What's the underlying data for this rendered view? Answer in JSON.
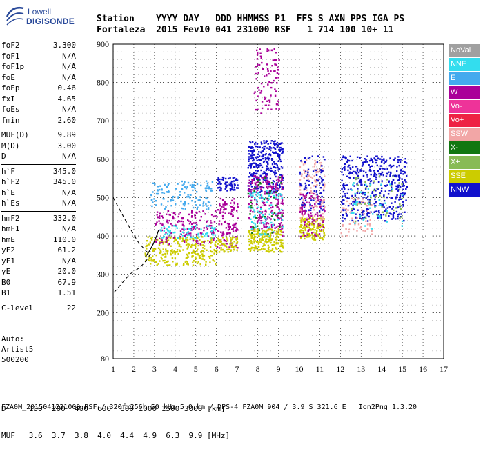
{
  "logo": {
    "line1": "Lowell",
    "line2": "DIGISONDE"
  },
  "header": {
    "labels": "Station    YYYY DAY   DDD HHMMSS P1  FFS S AXN PPS IGA PS",
    "values": "Fortaleza  2015 Fev10 041 231000 RSF   1 714 100 10+ 11"
  },
  "params_group1": [
    {
      "name": "foF2",
      "value": "3.300"
    },
    {
      "name": "foF1",
      "value": "N/A"
    },
    {
      "name": "foF1p",
      "value": "N/A"
    },
    {
      "name": "foE",
      "value": "N/A"
    },
    {
      "name": "foEp",
      "value": "0.46"
    },
    {
      "name": "fxI",
      "value": "4.65"
    },
    {
      "name": "foEs",
      "value": "N/A"
    },
    {
      "name": "fmin",
      "value": "2.60"
    }
  ],
  "params_group2": [
    {
      "name": "MUF(D)",
      "value": "9.89"
    },
    {
      "name": "M(D)",
      "value": "3.00"
    },
    {
      "name": "D",
      "value": "N/A"
    }
  ],
  "params_group3": [
    {
      "name": "h`F",
      "value": "345.0"
    },
    {
      "name": "h`F2",
      "value": "345.0"
    },
    {
      "name": "h`E",
      "value": "N/A"
    },
    {
      "name": "h`Es",
      "value": "N/A"
    }
  ],
  "params_group4": [
    {
      "name": "hmF2",
      "value": "332.0"
    },
    {
      "name": "hmF1",
      "value": "N/A"
    },
    {
      "name": "hmE",
      "value": "110.0"
    },
    {
      "name": "yF2",
      "value": "61.2"
    },
    {
      "name": "yF1",
      "value": "N/A"
    },
    {
      "name": "yE",
      "value": "20.0"
    },
    {
      "name": "B0",
      "value": "67.9"
    },
    {
      "name": "B1",
      "value": "1.51"
    }
  ],
  "params_group5": [
    {
      "name": "C-level",
      "value": "22"
    }
  ],
  "auto": {
    "line1": "Auto:",
    "line2": "Artist5",
    "line3": "500200"
  },
  "legend": [
    {
      "label": "NoVal",
      "color": "#a0a0a0",
      "text": "#ffffff"
    },
    {
      "label": "NNE",
      "color": "#33ddee",
      "text": "#ffffff"
    },
    {
      "label": "E",
      "color": "#44aaee",
      "text": "#ffffff"
    },
    {
      "label": "W",
      "color": "#aa0099",
      "text": "#ffffff"
    },
    {
      "label": "Vo-",
      "color": "#ee3399",
      "text": "#ffffff"
    },
    {
      "label": "Vo+",
      "color": "#ee2244",
      "text": "#ffffff"
    },
    {
      "label": "SSW",
      "color": "#f2a6a6",
      "text": "#ffffff"
    },
    {
      "label": "X-",
      "color": "#117711",
      "text": "#ffffff"
    },
    {
      "label": "X+",
      "color": "#88bb55",
      "text": "#ffffff"
    },
    {
      "label": "SSE",
      "color": "#cccc00",
      "text": "#ffffff"
    },
    {
      "label": "NNW",
      "color": "#1111cc",
      "text": "#ffffff"
    }
  ],
  "bottom": {
    "d_row": "D     100  200  400  600  800 1000 1500 3000 [km]",
    "muf_row": "MUF   3.6  3.7  3.8  4.0  4.4  4.9  6.3  9.9 [MHz]"
  },
  "footer": "FZA0M_2015041231000.RSF / 320fx256h 50 kHz 5.0 km / DPS-4 FZA0M 904 / 3.9 S 321.6 E   Ion2Png 1.3.20",
  "chart_data": {
    "type": "scatter",
    "xlabel": "",
    "ylabel": "",
    "xlim": [
      1,
      17
    ],
    "ylim": [
      80,
      900
    ],
    "xticks": [
      1,
      2,
      3,
      4,
      5,
      6,
      7,
      8,
      9,
      10,
      11,
      12,
      13,
      14,
      15,
      16,
      17
    ],
    "yticks": [
      80,
      200,
      300,
      400,
      500,
      600,
      700,
      800,
      900
    ],
    "grid": true,
    "clusters": [
      {
        "series": "SSE",
        "x": [
          2.5,
          6.0
        ],
        "y": [
          325,
          400
        ],
        "n": 260
      },
      {
        "series": "E",
        "x": [
          2.8,
          5.8
        ],
        "y": [
          470,
          545
        ],
        "n": 130
      },
      {
        "series": "W",
        "x": [
          3.0,
          6.0
        ],
        "y": [
          380,
          470
        ],
        "n": 160
      },
      {
        "series": "NNE",
        "x": [
          3.2,
          6.0
        ],
        "y": [
          395,
          430
        ],
        "n": 70
      },
      {
        "series": "NNW",
        "x": [
          6.0,
          7.0
        ],
        "y": [
          520,
          555
        ],
        "n": 70
      },
      {
        "series": "W",
        "x": [
          6.0,
          7.0
        ],
        "y": [
          370,
          500
        ],
        "n": 110
      },
      {
        "series": "SSE",
        "x": [
          6.0,
          7.0
        ],
        "y": [
          360,
          400
        ],
        "n": 60
      },
      {
        "series": "NNW",
        "x": [
          7.5,
          9.2
        ],
        "y": [
          510,
          650
        ],
        "n": 300
      },
      {
        "series": "W",
        "x": [
          7.5,
          9.2
        ],
        "y": [
          400,
          560
        ],
        "n": 220
      },
      {
        "series": "SSE",
        "x": [
          7.5,
          9.2
        ],
        "y": [
          360,
          420
        ],
        "n": 180
      },
      {
        "series": "NNE",
        "x": [
          7.5,
          9.2
        ],
        "y": [
          400,
          520
        ],
        "n": 90
      },
      {
        "series": "X-",
        "x": [
          7.5,
          9.2
        ],
        "y": [
          400,
          560
        ],
        "n": 40
      },
      {
        "series": "W",
        "x": [
          7.8,
          9.0
        ],
        "y": [
          720,
          890
        ],
        "n": 90
      },
      {
        "series": "SSE",
        "x": [
          10.0,
          11.2
        ],
        "y": [
          390,
          450
        ],
        "n": 150
      },
      {
        "series": "SSW",
        "x": [
          10.0,
          11.2
        ],
        "y": [
          440,
          600
        ],
        "n": 110
      },
      {
        "series": "NNW",
        "x": [
          10.0,
          11.2
        ],
        "y": [
          460,
          610
        ],
        "n": 90
      },
      {
        "series": "W",
        "x": [
          10.0,
          11.2
        ],
        "y": [
          400,
          520
        ],
        "n": 80
      },
      {
        "series": "NNW",
        "x": [
          12.0,
          15.2
        ],
        "y": [
          440,
          610
        ],
        "n": 420
      },
      {
        "series": "SSW",
        "x": [
          12.0,
          13.5
        ],
        "y": [
          400,
          500
        ],
        "n": 60
      },
      {
        "series": "X+",
        "x": [
          12.5,
          15.0
        ],
        "y": [
          440,
          560
        ],
        "n": 50
      },
      {
        "series": "NNE",
        "x": [
          12.5,
          15.0
        ],
        "y": [
          420,
          540
        ],
        "n": 40
      }
    ],
    "trace_solid": [
      [
        2.55,
        345
      ],
      [
        2.75,
        360
      ],
      [
        2.95,
        380
      ],
      [
        3.1,
        400
      ],
      [
        3.2,
        415
      ]
    ],
    "trace_dashed": [
      [
        1.0,
        500
      ],
      [
        1.6,
        440
      ],
      [
        2.2,
        385
      ],
      [
        2.6,
        360
      ],
      [
        2.8,
        352
      ],
      [
        2.6,
        335
      ],
      [
        2.3,
        318
      ],
      [
        1.8,
        300
      ],
      [
        1.0,
        250
      ]
    ]
  }
}
